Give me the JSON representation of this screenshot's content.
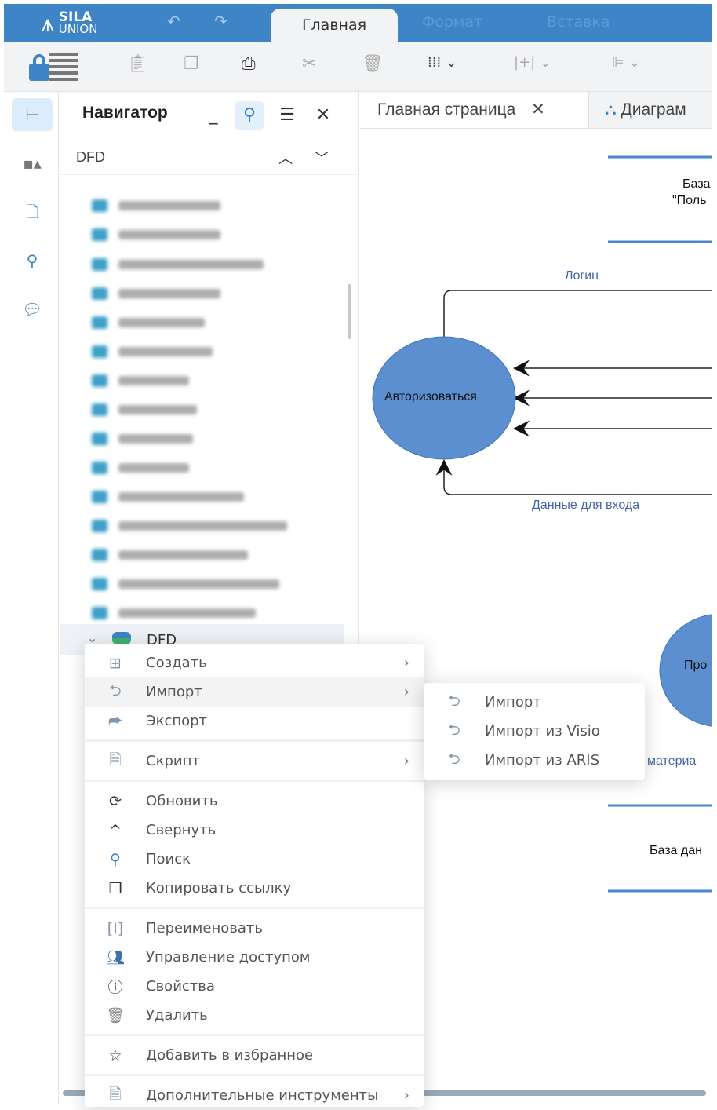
{
  "app": {
    "logo_line1": "SILA",
    "logo_line2": "UNION"
  },
  "ribbon_tabs": [
    {
      "label": "Главная",
      "active": true
    },
    {
      "label": "Формат"
    },
    {
      "label": "Вставка"
    }
  ],
  "toolbar_icons": [
    "lock-list",
    "paste",
    "copy",
    "print",
    "cut",
    "delete",
    "grid",
    "insert-column",
    "align-left"
  ],
  "navigator": {
    "title": "Навигатор",
    "crumb": "DFD",
    "selected_item": "DFD"
  },
  "doc_tabs": [
    {
      "label": "Главная страница",
      "closable": true
    },
    {
      "label": "Диаграм"
    }
  ],
  "diagram": {
    "store_top": "База",
    "store_top_line2": "\"Поль",
    "process_main": "Авторизоваться",
    "flow_login": "Логин",
    "flow_login_data": "Данные для входа",
    "process_second": "Про",
    "flow_material": "материа",
    "store_bottom": "База дан",
    "colors": {
      "process": "#5b8fd0",
      "store_line": "#4a86d0",
      "flow_label": "#4466aa"
    }
  },
  "context_menu": {
    "items": [
      {
        "label": "Создать",
        "icon": "create-icon",
        "submenu": true
      },
      {
        "label": "Импорт",
        "icon": "import-icon",
        "submenu": true,
        "hovered": true
      },
      {
        "label": "Экспорт",
        "icon": "export-icon"
      },
      {
        "label": "Скрипт",
        "icon": "script-icon",
        "submenu": true
      },
      {
        "label": "Обновить",
        "icon": "refresh-icon"
      },
      {
        "label": "Свернуть",
        "icon": "collapse-icon"
      },
      {
        "label": "Поиск",
        "icon": "search-icon"
      },
      {
        "label": "Копировать ссылку",
        "icon": "copy-link-icon"
      },
      {
        "label": "Переименовать",
        "icon": "rename-icon"
      },
      {
        "label": "Управление доступом",
        "icon": "access-icon"
      },
      {
        "label": "Свойства",
        "icon": "info-icon"
      },
      {
        "label": "Удалить",
        "icon": "trash-icon"
      },
      {
        "label": "Добавить в избранное",
        "icon": "star-icon"
      },
      {
        "label": "Дополнительные инструменты",
        "icon": "tools-icon",
        "submenu": true
      }
    ]
  },
  "import_submenu": {
    "items": [
      {
        "label": "Импорт"
      },
      {
        "label": "Импорт из Visio"
      },
      {
        "label": "Импорт из ARIS"
      }
    ]
  }
}
